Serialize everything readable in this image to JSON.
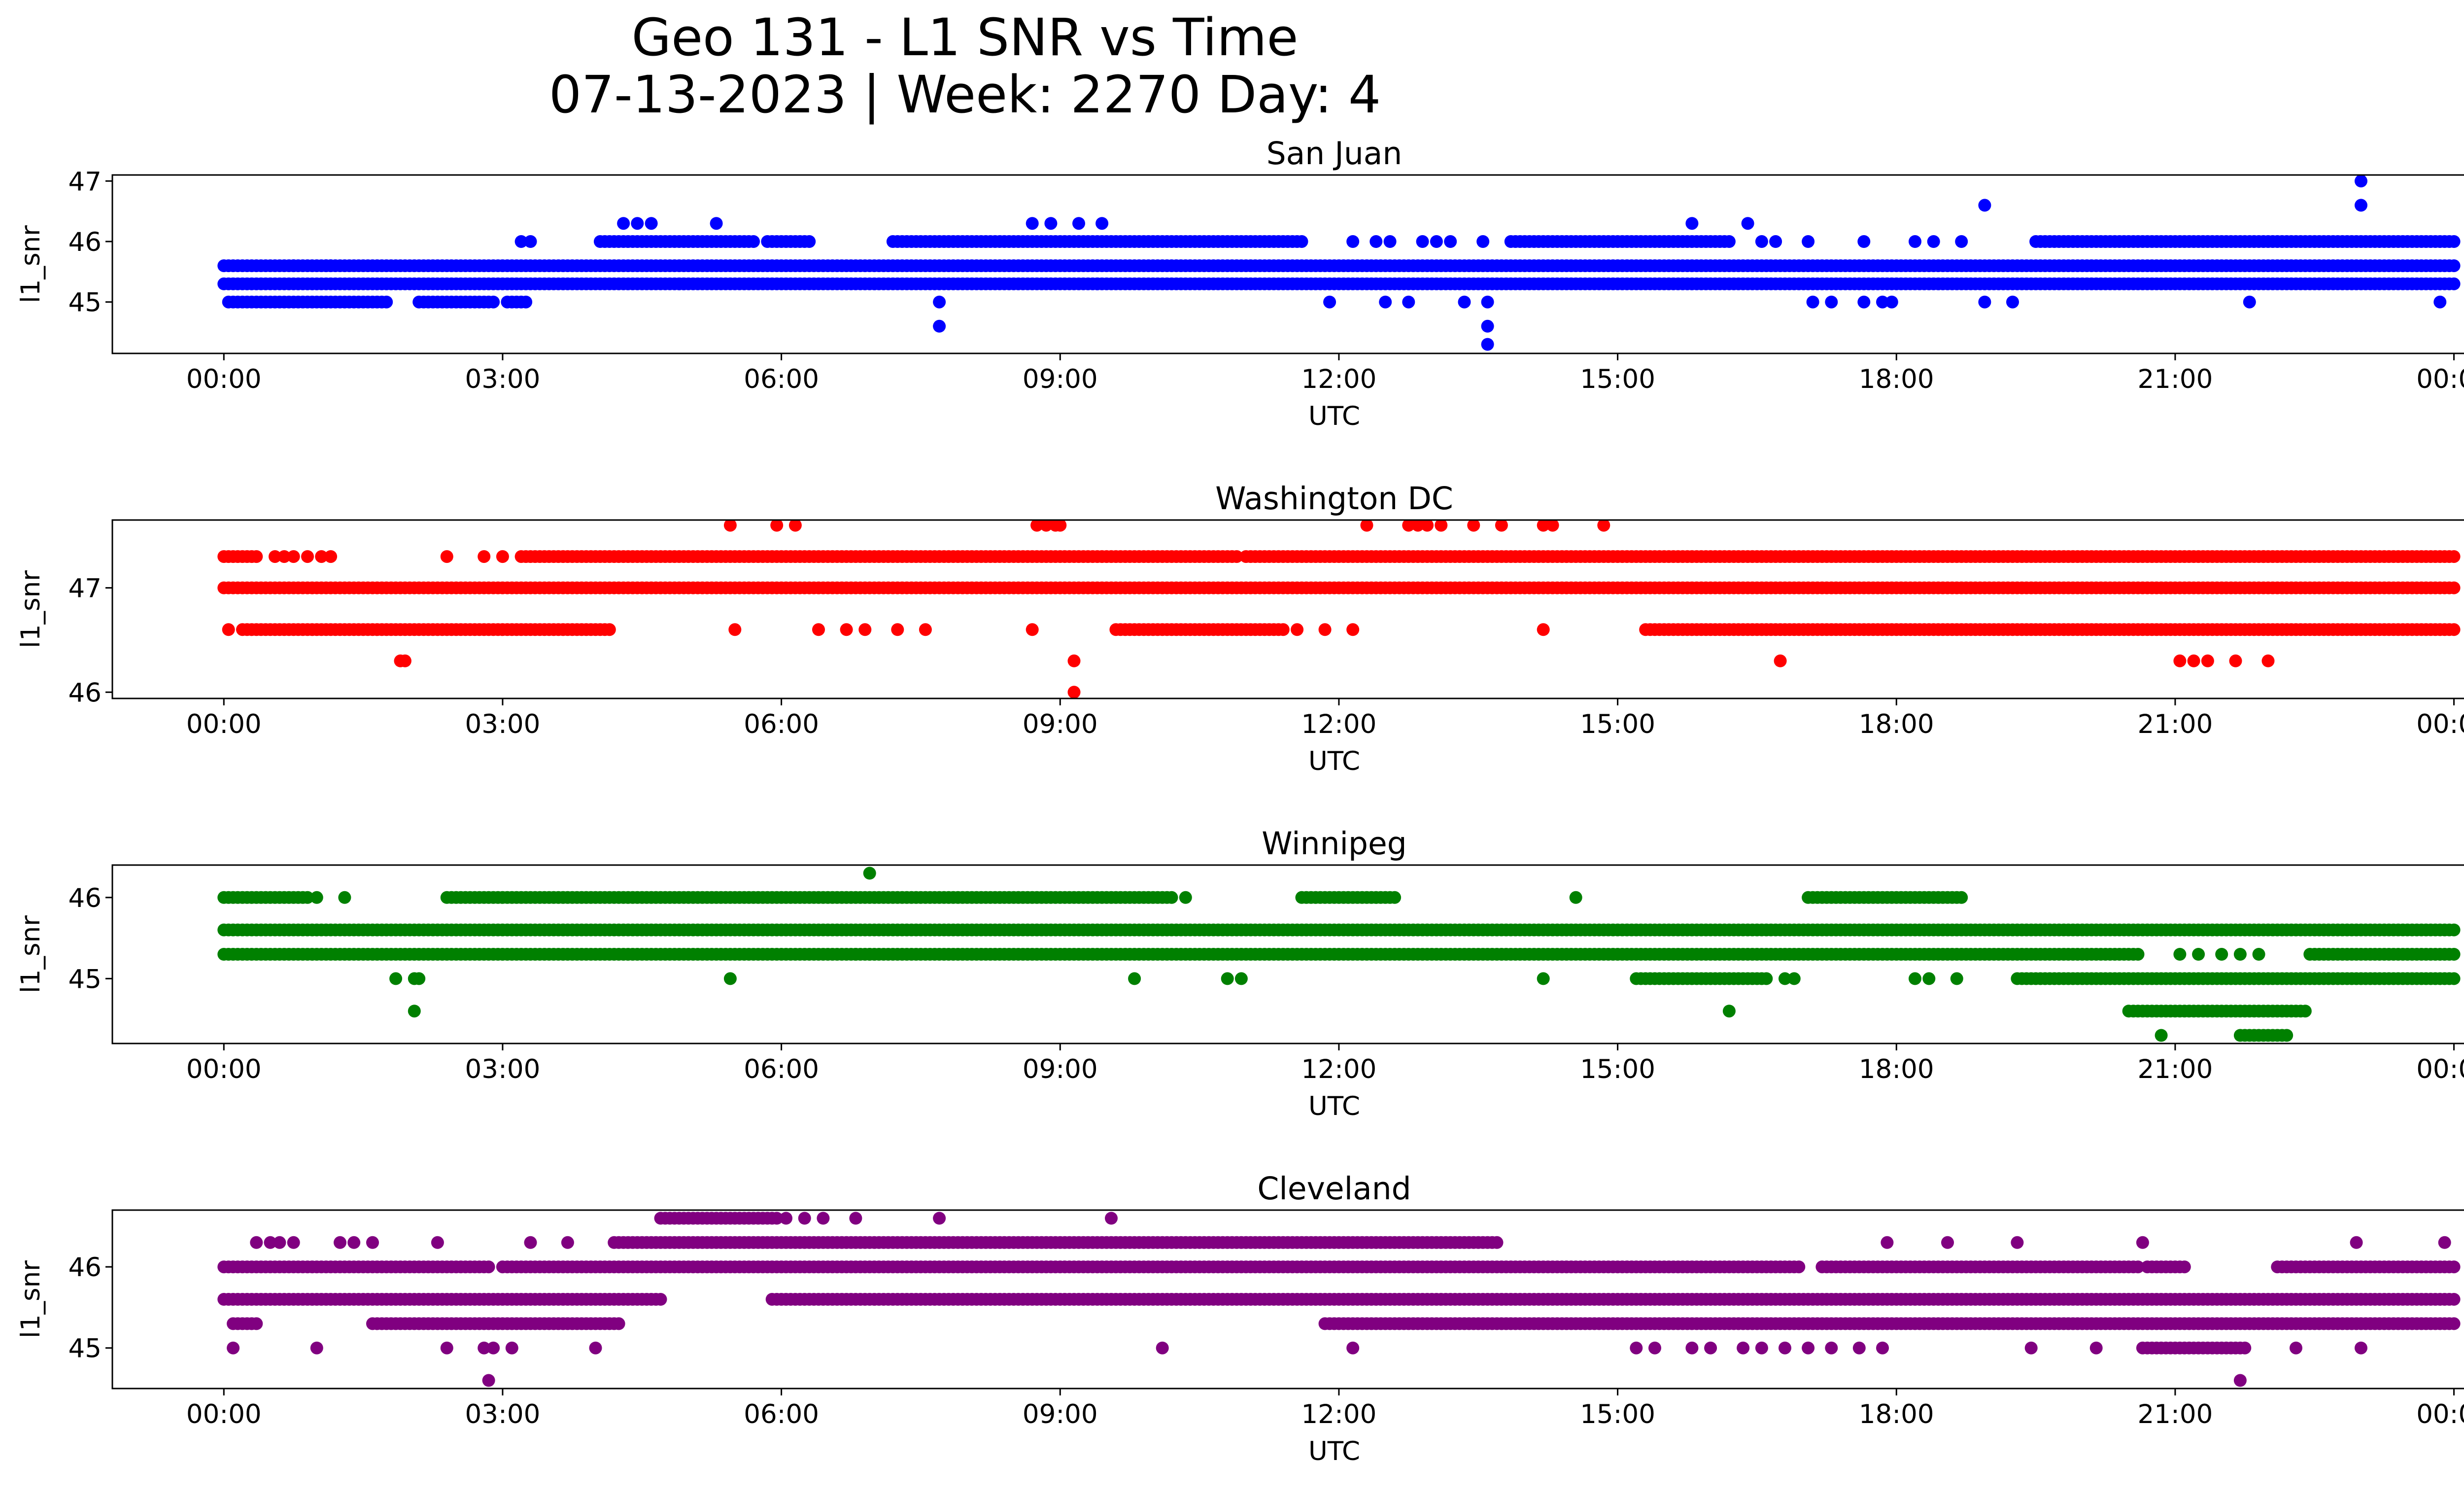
{
  "figure": {
    "title_line1": "Geo 131 - L1 SNR vs Time",
    "title_line2": "07-13-2023 | Week: 2270 Day: 4"
  },
  "chart_data": [
    {
      "type": "scatter",
      "title": "San Juan",
      "xlabel": "UTC",
      "ylabel": "l1_snr",
      "color": "#0000ff",
      "xlim_hours": [
        -1.2,
        25.1
      ],
      "ylim": [
        44.15,
        47.1
      ],
      "x_ticks": [
        "00:00",
        "03:00",
        "06:00",
        "09:00",
        "12:00",
        "15:00",
        "18:00",
        "21:00",
        "00:00"
      ],
      "y_ticks": [
        45,
        46,
        47
      ],
      "bands": [
        {
          "y": 45.6,
          "segments": [
            [
              0,
              24
            ]
          ]
        },
        {
          "y": 45.3,
          "segments": [
            [
              0,
              24
            ]
          ]
        },
        {
          "y": 45.0,
          "segments": [
            [
              0.05,
              1.75
            ],
            [
              2.1,
              2.9
            ],
            [
              3.05,
              3.25
            ]
          ]
        },
        {
          "y": 46.0,
          "segments": [
            [
              4.05,
              5.7
            ],
            [
              5.85,
              6.3
            ],
            [
              7.2,
              11.6
            ],
            [
              13.85,
              16.2
            ],
            [
              19.5,
              24
            ]
          ]
        }
      ],
      "outliers": [
        [
          0.75,
          45.6
        ],
        [
          1.1,
          45.6
        ],
        [
          1.15,
          45.6
        ],
        [
          3.2,
          46.0
        ],
        [
          3.3,
          46.0
        ],
        [
          4.3,
          46.3
        ],
        [
          4.45,
          46.3
        ],
        [
          4.6,
          46.3
        ],
        [
          5.3,
          46.3
        ],
        [
          4.9,
          45.3
        ],
        [
          4.95,
          45.3
        ],
        [
          7.7,
          45.0
        ],
        [
          7.7,
          44.6
        ],
        [
          8.7,
          46.3
        ],
        [
          8.9,
          46.3
        ],
        [
          9.2,
          46.3
        ],
        [
          9.45,
          46.3
        ],
        [
          9.4,
          45.3
        ],
        [
          11.9,
          45.0
        ],
        [
          12.15,
          46.0
        ],
        [
          12.4,
          46.0
        ],
        [
          12.55,
          46.0
        ],
        [
          12.5,
          45.0
        ],
        [
          12.75,
          45.0
        ],
        [
          12.9,
          46.0
        ],
        [
          13.05,
          46.0
        ],
        [
          13.2,
          46.0
        ],
        [
          13.35,
          45.0
        ],
        [
          13.55,
          46.0
        ],
        [
          13.6,
          45.0
        ],
        [
          13.6,
          44.6
        ],
        [
          13.6,
          44.3
        ],
        [
          15.8,
          46.3
        ],
        [
          16.4,
          46.3
        ],
        [
          16.55,
          46.0
        ],
        [
          16.7,
          46.0
        ],
        [
          17.05,
          46.0
        ],
        [
          17.1,
          45.0
        ],
        [
          17.3,
          45.0
        ],
        [
          17.65,
          46.0
        ],
        [
          17.65,
          45.0
        ],
        [
          17.85,
          45.0
        ],
        [
          17.95,
          45.0
        ],
        [
          18.2,
          46.0
        ],
        [
          18.4,
          46.0
        ],
        [
          18.7,
          46.0
        ],
        [
          18.95,
          46.6
        ],
        [
          18.95,
          45.0
        ],
        [
          19.25,
          45.0
        ],
        [
          21.8,
          45.0
        ],
        [
          23.0,
          47.0
        ],
        [
          23.0,
          46.6
        ],
        [
          23.85,
          45.0
        ]
      ]
    },
    {
      "type": "scatter",
      "title": "Washington DC",
      "xlabel": "UTC",
      "ylabel": "l1_snr",
      "color": "#ff0000",
      "xlim_hours": [
        -1.2,
        25.1
      ],
      "ylim": [
        45.94,
        47.65
      ],
      "x_ticks": [
        "00:00",
        "03:00",
        "06:00",
        "09:00",
        "12:00",
        "15:00",
        "18:00",
        "21:00",
        "00:00"
      ],
      "y_ticks": [
        46,
        47
      ],
      "bands": [
        {
          "y": 47.0,
          "segments": [
            [
              0,
              24
            ]
          ]
        },
        {
          "y": 47.3,
          "segments": [
            [
              0,
              0.35
            ],
            [
              3.2,
              10.9
            ],
            [
              11.0,
              24
            ]
          ]
        },
        {
          "y": 46.6,
          "segments": [
            [
              0.2,
              4.15
            ],
            [
              9.6,
              11.4
            ],
            [
              15.3,
              24
            ]
          ]
        }
      ],
      "outliers": [
        [
          0.05,
          46.6
        ],
        [
          0.55,
          47.3
        ],
        [
          0.65,
          47.3
        ],
        [
          0.75,
          47.3
        ],
        [
          0.9,
          47.3
        ],
        [
          1.05,
          47.3
        ],
        [
          1.15,
          47.3
        ],
        [
          1.9,
          46.3
        ],
        [
          1.95,
          46.3
        ],
        [
          2.4,
          47.3
        ],
        [
          2.8,
          47.3
        ],
        [
          3.0,
          47.3
        ],
        [
          5.45,
          47.6
        ],
        [
          5.5,
          46.6
        ],
        [
          5.95,
          47.6
        ],
        [
          6.15,
          47.6
        ],
        [
          6.4,
          46.6
        ],
        [
          6.7,
          46.6
        ],
        [
          6.9,
          46.6
        ],
        [
          7.25,
          46.6
        ],
        [
          7.55,
          46.6
        ],
        [
          8.7,
          46.6
        ],
        [
          8.75,
          47.6
        ],
        [
          8.85,
          47.6
        ],
        [
          8.95,
          47.6
        ],
        [
          9.0,
          47.6
        ],
        [
          9.15,
          46.3
        ],
        [
          9.15,
          46.0
        ],
        [
          11.55,
          46.6
        ],
        [
          11.85,
          46.6
        ],
        [
          12.15,
          46.6
        ],
        [
          12.3,
          47.6
        ],
        [
          12.75,
          47.6
        ],
        [
          12.85,
          47.6
        ],
        [
          12.95,
          47.6
        ],
        [
          13.1,
          47.6
        ],
        [
          13.45,
          47.6
        ],
        [
          13.75,
          47.6
        ],
        [
          14.2,
          47.6
        ],
        [
          14.3,
          47.6
        ],
        [
          14.2,
          46.6
        ],
        [
          14.85,
          47.6
        ],
        [
          16.75,
          46.3
        ],
        [
          20.3,
          47.3
        ],
        [
          21.05,
          46.3
        ],
        [
          21.2,
          46.3
        ],
        [
          21.35,
          46.3
        ],
        [
          21.65,
          46.3
        ],
        [
          22.0,
          46.3
        ],
        [
          21.95,
          47.3
        ]
      ]
    },
    {
      "type": "scatter",
      "title": "Winnipeg",
      "xlabel": "UTC",
      "ylabel": "l1_snr",
      "color": "#008000",
      "xlim_hours": [
        -1.2,
        25.1
      ],
      "ylim": [
        44.2,
        46.4
      ],
      "x_ticks": [
        "00:00",
        "03:00",
        "06:00",
        "09:00",
        "12:00",
        "15:00",
        "18:00",
        "21:00",
        "00:00"
      ],
      "y_ticks": [
        45,
        46
      ],
      "bands": [
        {
          "y": 45.6,
          "segments": [
            [
              0,
              24
            ]
          ]
        },
        {
          "y": 45.3,
          "segments": [
            [
              0,
              20.6
            ],
            [
              22.45,
              24
            ]
          ]
        },
        {
          "y": 46.0,
          "segments": [
            [
              0,
              0.9
            ],
            [
              2.4,
              10.2
            ],
            [
              11.6,
              12.6
            ],
            [
              17.05,
              18.7
            ]
          ]
        },
        {
          "y": 45.0,
          "segments": [
            [
              15.2,
              16.6
            ],
            [
              19.3,
              24
            ]
          ]
        },
        {
          "y": 44.6,
          "segments": [
            [
              20.5,
              22.4
            ]
          ]
        },
        {
          "y": 44.3,
          "segments": [
            [
              21.7,
              22.2
            ]
          ]
        }
      ],
      "outliers": [
        [
          1.0,
          46.0
        ],
        [
          1.3,
          46.0
        ],
        [
          1.85,
          45.0
        ],
        [
          2.05,
          45.0
        ],
        [
          2.1,
          45.0
        ],
        [
          2.05,
          44.6
        ],
        [
          5.45,
          45.0
        ],
        [
          6.95,
          46.3
        ],
        [
          6.8,
          45.3
        ],
        [
          6.95,
          45.3
        ],
        [
          9.8,
          45.0
        ],
        [
          10.8,
          45.0
        ],
        [
          10.95,
          45.0
        ],
        [
          10.35,
          46.0
        ],
        [
          14.2,
          45.0
        ],
        [
          14.55,
          46.0
        ],
        [
          16.2,
          44.6
        ],
        [
          16.8,
          45.0
        ],
        [
          16.9,
          45.0
        ],
        [
          18.2,
          45.0
        ],
        [
          18.35,
          45.0
        ],
        [
          18.65,
          45.0
        ],
        [
          20.85,
          44.3
        ],
        [
          21.05,
          45.3
        ],
        [
          21.25,
          45.3
        ],
        [
          21.5,
          45.3
        ],
        [
          21.7,
          45.3
        ],
        [
          21.9,
          45.3
        ]
      ]
    },
    {
      "type": "scatter",
      "title": "Cleveland",
      "xlabel": "UTC",
      "ylabel": "l1_snr",
      "color": "#800080",
      "xlim_hours": [
        -1.2,
        25.1
      ],
      "ylim": [
        44.5,
        46.7
      ],
      "x_ticks": [
        "00:00",
        "03:00",
        "06:00",
        "09:00",
        "12:00",
        "15:00",
        "18:00",
        "21:00",
        "00:00"
      ],
      "y_ticks": [
        45,
        46
      ],
      "bands": [
        {
          "y": 46.0,
          "segments": [
            [
              0,
              2.85
            ],
            [
              3.0,
              16.9
            ],
            [
              17.2,
              20.6
            ],
            [
              20.7,
              21.1
            ],
            [
              22.1,
              24
            ]
          ]
        },
        {
          "y": 45.6,
          "segments": [
            [
              0,
              4.7
            ],
            [
              5.9,
              24
            ]
          ]
        },
        {
          "y": 45.3,
          "segments": [
            [
              0.1,
              0.35
            ],
            [
              1.6,
              4.25
            ],
            [
              11.85,
              24
            ]
          ]
        },
        {
          "y": 46.3,
          "segments": [
            [
              4.2,
              13.7
            ]
          ]
        },
        {
          "y": 46.6,
          "segments": [
            [
              4.7,
              5.95
            ]
          ]
        },
        {
          "y": 45.0,
          "segments": [
            [
              20.65,
              21.75
            ]
          ]
        }
      ],
      "outliers": [
        [
          0.1,
          45.0
        ],
        [
          1.0,
          45.0
        ],
        [
          2.4,
          45.0
        ],
        [
          2.8,
          45.0
        ],
        [
          2.9,
          45.0
        ],
        [
          3.1,
          45.0
        ],
        [
          4.0,
          45.0
        ],
        [
          2.85,
          44.6
        ],
        [
          0.35,
          46.3
        ],
        [
          0.5,
          46.3
        ],
        [
          0.6,
          46.3
        ],
        [
          0.75,
          46.3
        ],
        [
          1.25,
          46.3
        ],
        [
          1.4,
          46.3
        ],
        [
          1.6,
          46.3
        ],
        [
          2.3,
          46.3
        ],
        [
          3.3,
          46.3
        ],
        [
          3.7,
          46.3
        ],
        [
          6.05,
          46.6
        ],
        [
          6.25,
          46.6
        ],
        [
          6.45,
          46.6
        ],
        [
          6.8,
          46.6
        ],
        [
          7.7,
          46.6
        ],
        [
          9.55,
          46.6
        ],
        [
          10.1,
          45.0
        ],
        [
          12.15,
          45.0
        ],
        [
          15.2,
          45.0
        ],
        [
          15.4,
          45.0
        ],
        [
          15.8,
          45.0
        ],
        [
          16.0,
          45.0
        ],
        [
          16.35,
          45.0
        ],
        [
          16.55,
          45.0
        ],
        [
          16.8,
          45.0
        ],
        [
          17.05,
          45.0
        ],
        [
          17.3,
          45.0
        ],
        [
          17.6,
          45.0
        ],
        [
          17.85,
          45.0
        ],
        [
          16.95,
          46.0
        ],
        [
          19.45,
          45.0
        ],
        [
          20.15,
          45.0
        ],
        [
          22.3,
          45.0
        ],
        [
          23.0,
          45.0
        ],
        [
          21.7,
          44.6
        ],
        [
          17.9,
          46.3
        ],
        [
          18.55,
          46.3
        ],
        [
          19.3,
          46.3
        ],
        [
          20.65,
          46.3
        ],
        [
          22.95,
          46.3
        ],
        [
          23.9,
          46.3
        ]
      ]
    }
  ]
}
